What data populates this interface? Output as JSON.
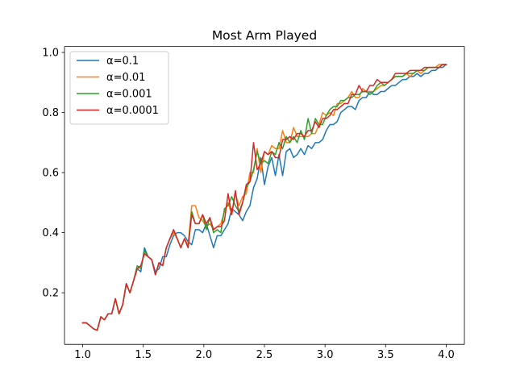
{
  "chart_data": {
    "type": "line",
    "title": "Most Arm Played",
    "xlabel": "",
    "ylabel": "",
    "xlim": [
      0.85,
      4.15
    ],
    "ylim": [
      0.028,
      1.02
    ],
    "xticks": [
      1.0,
      1.5,
      2.0,
      2.5,
      3.0,
      3.5,
      4.0
    ],
    "xtick_labels": [
      "1.0",
      "1.5",
      "2.0",
      "2.5",
      "3.0",
      "3.5",
      "4.0"
    ],
    "yticks": [
      0.2,
      0.4,
      0.6,
      0.8,
      1.0
    ],
    "ytick_labels": [
      "0.2",
      "0.4",
      "0.6",
      "0.8",
      "1.0"
    ],
    "grid": false,
    "legend_position": "top-left",
    "x": [
      1.0,
      1.03,
      1.06,
      1.09,
      1.12,
      1.15,
      1.18,
      1.21,
      1.24,
      1.27,
      1.3,
      1.33,
      1.36,
      1.39,
      1.42,
      1.45,
      1.48,
      1.51,
      1.54,
      1.57,
      1.6,
      1.63,
      1.66,
      1.69,
      1.72,
      1.75,
      1.78,
      1.81,
      1.84,
      1.87,
      1.9,
      1.93,
      1.96,
      1.99,
      2.02,
      2.05,
      2.08,
      2.11,
      2.14,
      2.17,
      2.2,
      2.23,
      2.26,
      2.29,
      2.32,
      2.35,
      2.38,
      2.41,
      2.44,
      2.47,
      2.5,
      2.53,
      2.56,
      2.59,
      2.62,
      2.65,
      2.68,
      2.71,
      2.74,
      2.77,
      2.8,
      2.83,
      2.86,
      2.89,
      2.92,
      2.95,
      2.98,
      3.01,
      3.04,
      3.07,
      3.1,
      3.13,
      3.16,
      3.19,
      3.22,
      3.25,
      3.28,
      3.31,
      3.34,
      3.37,
      3.4,
      3.43,
      3.46,
      3.49,
      3.52,
      3.55,
      3.58,
      3.61,
      3.64,
      3.67,
      3.7,
      3.73,
      3.76,
      3.79,
      3.82,
      3.85,
      3.88,
      3.91,
      3.94,
      3.97,
      4.0
    ],
    "series": [
      {
        "name": "α=0.1",
        "color": "#1f77b4",
        "values": [
          0.1,
          0.1,
          0.09,
          0.08,
          0.075,
          0.12,
          0.11,
          0.13,
          0.13,
          0.18,
          0.13,
          0.16,
          0.23,
          0.2,
          0.24,
          0.28,
          0.27,
          0.35,
          0.32,
          0.31,
          0.27,
          0.28,
          0.32,
          0.32,
          0.36,
          0.39,
          0.4,
          0.4,
          0.39,
          0.37,
          0.36,
          0.41,
          0.41,
          0.4,
          0.43,
          0.39,
          0.35,
          0.39,
          0.39,
          0.41,
          0.43,
          0.48,
          0.47,
          0.46,
          0.44,
          0.47,
          0.49,
          0.55,
          0.58,
          0.65,
          0.56,
          0.62,
          0.65,
          0.59,
          0.66,
          0.59,
          0.67,
          0.68,
          0.65,
          0.66,
          0.68,
          0.66,
          0.69,
          0.68,
          0.7,
          0.7,
          0.71,
          0.74,
          0.76,
          0.76,
          0.77,
          0.8,
          0.81,
          0.82,
          0.82,
          0.81,
          0.84,
          0.85,
          0.85,
          0.87,
          0.86,
          0.86,
          0.87,
          0.87,
          0.88,
          0.89,
          0.89,
          0.9,
          0.91,
          0.91,
          0.92,
          0.92,
          0.93,
          0.92,
          0.93,
          0.93,
          0.94,
          0.94,
          0.95,
          0.95,
          0.96
        ]
      },
      {
        "name": "α=0.01",
        "color": "#ff7f0e",
        "values": [
          0.1,
          0.1,
          0.09,
          0.08,
          0.075,
          0.12,
          0.11,
          0.13,
          0.13,
          0.18,
          0.13,
          0.16,
          0.23,
          0.2,
          0.24,
          0.28,
          0.29,
          0.33,
          0.32,
          0.31,
          0.26,
          0.3,
          0.29,
          0.35,
          0.38,
          0.4,
          0.38,
          0.35,
          0.38,
          0.36,
          0.49,
          0.49,
          0.45,
          0.44,
          0.42,
          0.43,
          0.41,
          0.42,
          0.43,
          0.47,
          0.5,
          0.46,
          0.53,
          0.49,
          0.52,
          0.53,
          0.6,
          0.6,
          0.68,
          0.6,
          0.67,
          0.66,
          0.69,
          0.68,
          0.68,
          0.74,
          0.7,
          0.7,
          0.75,
          0.72,
          0.72,
          0.72,
          0.72,
          0.73,
          0.73,
          0.76,
          0.8,
          0.79,
          0.8,
          0.79,
          0.83,
          0.83,
          0.84,
          0.85,
          0.87,
          0.85,
          0.85,
          0.88,
          0.87,
          0.87,
          0.87,
          0.88,
          0.89,
          0.89,
          0.9,
          0.91,
          0.92,
          0.92,
          0.92,
          0.93,
          0.92,
          0.93,
          0.94,
          0.93,
          0.94,
          0.95,
          0.95,
          0.95,
          0.96,
          0.96,
          0.96
        ]
      },
      {
        "name": "α=0.001",
        "color": "#2ca02c",
        "values": [
          0.1,
          0.1,
          0.09,
          0.08,
          0.075,
          0.12,
          0.11,
          0.13,
          0.13,
          0.18,
          0.13,
          0.16,
          0.23,
          0.2,
          0.24,
          0.29,
          0.28,
          0.34,
          0.32,
          0.31,
          0.26,
          0.3,
          0.29,
          0.35,
          0.38,
          0.41,
          0.38,
          0.35,
          0.38,
          0.35,
          0.47,
          0.43,
          0.43,
          0.46,
          0.41,
          0.45,
          0.4,
          0.41,
          0.4,
          0.48,
          0.49,
          0.52,
          0.49,
          0.47,
          0.5,
          0.55,
          0.57,
          0.61,
          0.67,
          0.63,
          0.64,
          0.63,
          0.67,
          0.66,
          0.7,
          0.68,
          0.72,
          0.7,
          0.72,
          0.7,
          0.74,
          0.71,
          0.78,
          0.73,
          0.78,
          0.76,
          0.76,
          0.79,
          0.81,
          0.82,
          0.82,
          0.84,
          0.84,
          0.85,
          0.85,
          0.86,
          0.86,
          0.87,
          0.87,
          0.86,
          0.87,
          0.89,
          0.9,
          0.89,
          0.9,
          0.91,
          0.92,
          0.92,
          0.92,
          0.93,
          0.93,
          0.93,
          0.94,
          0.94,
          0.94,
          0.95,
          0.95,
          0.95,
          0.95,
          0.96,
          0.96
        ]
      },
      {
        "name": "α=0.0001",
        "color": "#d62728",
        "values": [
          0.1,
          0.1,
          0.09,
          0.08,
          0.075,
          0.12,
          0.11,
          0.13,
          0.13,
          0.18,
          0.13,
          0.16,
          0.23,
          0.2,
          0.24,
          0.28,
          0.29,
          0.33,
          0.32,
          0.31,
          0.26,
          0.3,
          0.29,
          0.35,
          0.38,
          0.41,
          0.38,
          0.35,
          0.38,
          0.35,
          0.46,
          0.43,
          0.43,
          0.46,
          0.43,
          0.45,
          0.41,
          0.42,
          0.42,
          0.44,
          0.53,
          0.46,
          0.54,
          0.46,
          0.5,
          0.56,
          0.57,
          0.7,
          0.61,
          0.63,
          0.67,
          0.66,
          0.67,
          0.65,
          0.65,
          0.71,
          0.71,
          0.72,
          0.71,
          0.73,
          0.73,
          0.72,
          0.74,
          0.74,
          0.77,
          0.75,
          0.78,
          0.78,
          0.79,
          0.81,
          0.81,
          0.82,
          0.83,
          0.83,
          0.86,
          0.86,
          0.89,
          0.87,
          0.87,
          0.89,
          0.89,
          0.91,
          0.9,
          0.9,
          0.9,
          0.91,
          0.93,
          0.93,
          0.93,
          0.93,
          0.94,
          0.94,
          0.94,
          0.94,
          0.95,
          0.95,
          0.95,
          0.95,
          0.95,
          0.96,
          0.96
        ]
      }
    ]
  }
}
